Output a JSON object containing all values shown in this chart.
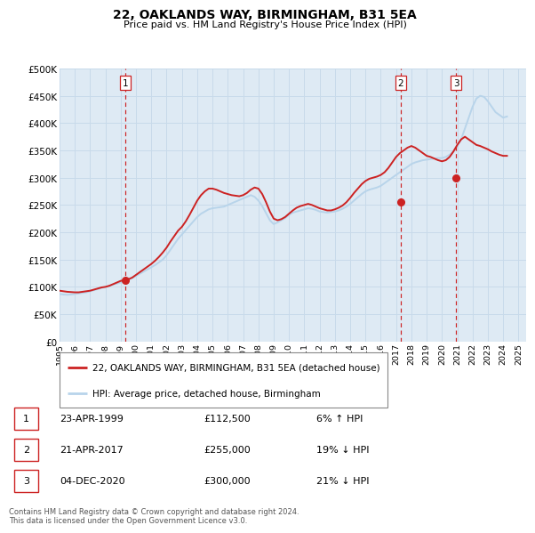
{
  "title": "22, OAKLANDS WAY, BIRMINGHAM, B31 5EA",
  "subtitle": "Price paid vs. HM Land Registry's House Price Index (HPI)",
  "ylim": [
    0,
    500000
  ],
  "yticks": [
    0,
    50000,
    100000,
    150000,
    200000,
    250000,
    300000,
    350000,
    400000,
    450000,
    500000
  ],
  "xlim_start": 1995.0,
  "xlim_end": 2025.5,
  "hpi_color": "#b8d4ea",
  "price_color": "#cc2222",
  "grid_color": "#c8daea",
  "background_color": "#deeaf4",
  "sale_markers": [
    {
      "year": 1999.31,
      "price": 112500,
      "label": "1"
    },
    {
      "year": 2017.31,
      "price": 255000,
      "label": "2"
    },
    {
      "year": 2020.92,
      "price": 300000,
      "label": "3"
    }
  ],
  "vlines": [
    {
      "year": 1999.31,
      "label": "1"
    },
    {
      "year": 2017.31,
      "label": "2"
    },
    {
      "year": 2020.92,
      "label": "3"
    }
  ],
  "legend_label_red": "22, OAKLANDS WAY, BIRMINGHAM, B31 5EA (detached house)",
  "legend_label_blue": "HPI: Average price, detached house, Birmingham",
  "table_rows": [
    {
      "num": "1",
      "date": "23-APR-1999",
      "price": "£112,500",
      "change": "6% ↑ HPI"
    },
    {
      "num": "2",
      "date": "21-APR-2017",
      "price": "£255,000",
      "change": "19% ↓ HPI"
    },
    {
      "num": "3",
      "date": "04-DEC-2020",
      "price": "£300,000",
      "change": "21% ↓ HPI"
    }
  ],
  "footnote": "Contains HM Land Registry data © Crown copyright and database right 2024.\nThis data is licensed under the Open Government Licence v3.0.",
  "hpi_data_x": [
    1995.0,
    1995.25,
    1995.5,
    1995.75,
    1996.0,
    1996.25,
    1996.5,
    1996.75,
    1997.0,
    1997.25,
    1997.5,
    1997.75,
    1998.0,
    1998.25,
    1998.5,
    1998.75,
    1999.0,
    1999.25,
    1999.5,
    1999.75,
    2000.0,
    2000.25,
    2000.5,
    2000.75,
    2001.0,
    2001.25,
    2001.5,
    2001.75,
    2002.0,
    2002.25,
    2002.5,
    2002.75,
    2003.0,
    2003.25,
    2003.5,
    2003.75,
    2004.0,
    2004.25,
    2004.5,
    2004.75,
    2005.0,
    2005.25,
    2005.5,
    2005.75,
    2006.0,
    2006.25,
    2006.5,
    2006.75,
    2007.0,
    2007.25,
    2007.5,
    2007.75,
    2008.0,
    2008.25,
    2008.5,
    2008.75,
    2009.0,
    2009.25,
    2009.5,
    2009.75,
    2010.0,
    2010.25,
    2010.5,
    2010.75,
    2011.0,
    2011.25,
    2011.5,
    2011.75,
    2012.0,
    2012.25,
    2012.5,
    2012.75,
    2013.0,
    2013.25,
    2013.5,
    2013.75,
    2014.0,
    2014.25,
    2014.5,
    2014.75,
    2015.0,
    2015.25,
    2015.5,
    2015.75,
    2016.0,
    2016.25,
    2016.5,
    2016.75,
    2017.0,
    2017.25,
    2017.5,
    2017.75,
    2018.0,
    2018.25,
    2018.5,
    2018.75,
    2019.0,
    2019.25,
    2019.5,
    2019.75,
    2020.0,
    2020.25,
    2020.5,
    2020.75,
    2021.0,
    2021.25,
    2021.5,
    2021.75,
    2022.0,
    2022.25,
    2022.5,
    2022.75,
    2023.0,
    2023.25,
    2023.5,
    2023.75,
    2024.0,
    2024.25
  ],
  "hpi_data_y": [
    87000,
    86000,
    85500,
    86000,
    87000,
    88000,
    89000,
    90000,
    92000,
    94000,
    96000,
    98000,
    100000,
    102000,
    104000,
    106000,
    108000,
    110000,
    113000,
    116000,
    120000,
    124000,
    128000,
    132000,
    136000,
    140000,
    145000,
    150000,
    158000,
    168000,
    178000,
    188000,
    196000,
    204000,
    212000,
    220000,
    228000,
    234000,
    238000,
    242000,
    244000,
    245000,
    246000,
    247000,
    250000,
    253000,
    256000,
    259000,
    262000,
    265000,
    268000,
    265000,
    258000,
    248000,
    235000,
    222000,
    215000,
    218000,
    222000,
    226000,
    232000,
    236000,
    238000,
    240000,
    242000,
    244000,
    243000,
    241000,
    238000,
    237000,
    236000,
    237000,
    238000,
    240000,
    243000,
    247000,
    252000,
    258000,
    264000,
    270000,
    275000,
    278000,
    280000,
    282000,
    285000,
    290000,
    295000,
    300000,
    305000,
    310000,
    315000,
    320000,
    325000,
    328000,
    330000,
    332000,
    333000,
    334000,
    335000,
    336000,
    336000,
    338000,
    342000,
    348000,
    358000,
    370000,
    390000,
    410000,
    430000,
    445000,
    450000,
    448000,
    440000,
    430000,
    420000,
    415000,
    410000,
    412000
  ],
  "price_data_x": [
    1995.0,
    1995.25,
    1995.5,
    1995.75,
    1996.0,
    1996.25,
    1996.5,
    1996.75,
    1997.0,
    1997.25,
    1997.5,
    1997.75,
    1998.0,
    1998.25,
    1998.5,
    1998.75,
    1999.0,
    1999.25,
    1999.5,
    1999.75,
    2000.0,
    2000.25,
    2000.5,
    2000.75,
    2001.0,
    2001.25,
    2001.5,
    2001.75,
    2002.0,
    2002.25,
    2002.5,
    2002.75,
    2003.0,
    2003.25,
    2003.5,
    2003.75,
    2004.0,
    2004.25,
    2004.5,
    2004.75,
    2005.0,
    2005.25,
    2005.5,
    2005.75,
    2006.0,
    2006.25,
    2006.5,
    2006.75,
    2007.0,
    2007.25,
    2007.5,
    2007.75,
    2008.0,
    2008.25,
    2008.5,
    2008.75,
    2009.0,
    2009.25,
    2009.5,
    2009.75,
    2010.0,
    2010.25,
    2010.5,
    2010.75,
    2011.0,
    2011.25,
    2011.5,
    2011.75,
    2012.0,
    2012.25,
    2012.5,
    2012.75,
    2013.0,
    2013.25,
    2013.5,
    2013.75,
    2014.0,
    2014.25,
    2014.5,
    2014.75,
    2015.0,
    2015.25,
    2015.5,
    2015.75,
    2016.0,
    2016.25,
    2016.5,
    2016.75,
    2017.0,
    2017.25,
    2017.5,
    2017.75,
    2018.0,
    2018.25,
    2018.5,
    2018.75,
    2019.0,
    2019.25,
    2019.5,
    2019.75,
    2020.0,
    2020.25,
    2020.5,
    2020.75,
    2021.0,
    2021.25,
    2021.5,
    2021.75,
    2022.0,
    2022.25,
    2022.5,
    2022.75,
    2023.0,
    2023.25,
    2023.5,
    2023.75,
    2024.0,
    2024.25
  ],
  "price_data_y": [
    93000,
    92000,
    91000,
    90500,
    90000,
    90000,
    91000,
    92000,
    93000,
    95000,
    97000,
    99000,
    100000,
    102000,
    105000,
    108000,
    111000,
    112500,
    114000,
    117000,
    122000,
    127000,
    132000,
    137000,
    142000,
    148000,
    155000,
    163000,
    172000,
    183000,
    193000,
    203000,
    210000,
    220000,
    232000,
    245000,
    258000,
    268000,
    275000,
    280000,
    280000,
    278000,
    275000,
    272000,
    270000,
    268000,
    267000,
    266000,
    268000,
    272000,
    278000,
    282000,
    280000,
    270000,
    255000,
    238000,
    225000,
    222000,
    224000,
    228000,
    234000,
    240000,
    245000,
    248000,
    250000,
    252000,
    250000,
    247000,
    244000,
    242000,
    240000,
    240000,
    242000,
    245000,
    249000,
    255000,
    263000,
    272000,
    280000,
    288000,
    294000,
    298000,
    300000,
    302000,
    305000,
    310000,
    318000,
    328000,
    338000,
    345000,
    350000,
    355000,
    358000,
    355000,
    350000,
    345000,
    340000,
    338000,
    335000,
    332000,
    330000,
    332000,
    338000,
    348000,
    360000,
    370000,
    375000,
    370000,
    365000,
    360000,
    358000,
    355000,
    352000,
    348000,
    345000,
    342000,
    340000,
    340000
  ]
}
